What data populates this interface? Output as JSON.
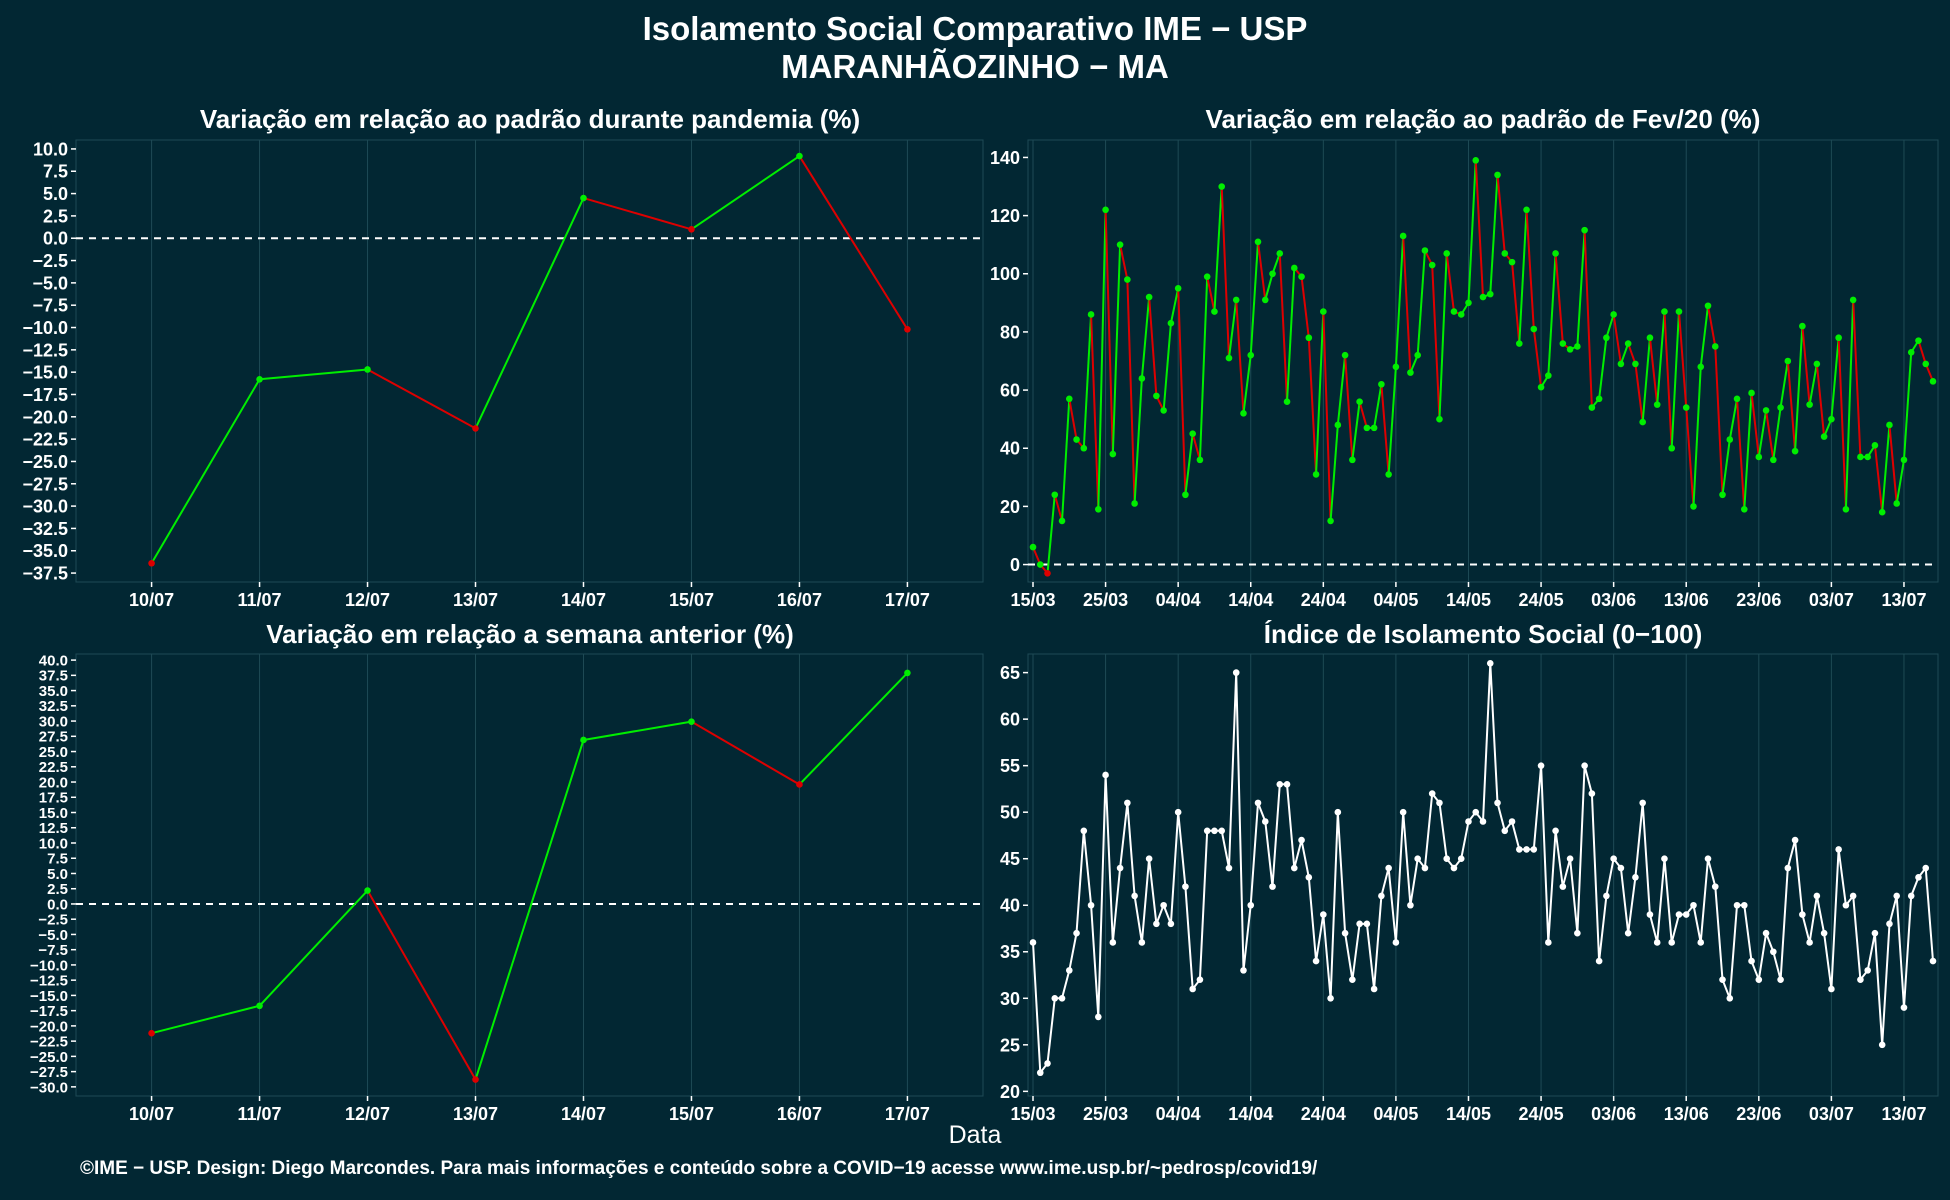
{
  "title_line1": "Isolamento Social Comparativo IME − USP",
  "title_line2": "MARANHÃOZINHO − MA",
  "xlabel": "Data",
  "caption": "©IME − USP. Design: Diego Marcondes. Para mais informações e conteúdo sobre a COVID−19 acesse www.ime.usp.br/~pedrosp/covid19/",
  "colors": {
    "background": "#022733",
    "grid": "#1e4a55",
    "positive": "#00ee00",
    "negative": "#dd0000",
    "index_series": "#ffffff"
  },
  "chart_data": [
    {
      "id": "pandemia",
      "type": "line",
      "title": "Variação em relação ao padrão durante pandemia (%)",
      "categories": [
        "10/07",
        "11/07",
        "12/07",
        "13/07",
        "14/07",
        "15/07",
        "16/07",
        "17/07"
      ],
      "values": [
        -36.4,
        -15.8,
        -14.7,
        -21.3,
        4.5,
        1.0,
        9.2,
        -10.2
      ],
      "segment_coloring": "green if increasing, red if decreasing",
      "reference_line": 0,
      "ylim": [
        -38.5,
        11.0
      ],
      "yticks": [
        "10.0",
        "7.5",
        "5.0",
        "2.5",
        "0.0",
        "−2.5",
        "−5.0",
        "−7.5",
        "−10.0",
        "−12.5",
        "−15.0",
        "−17.5",
        "−20.0",
        "−22.5",
        "−25.0",
        "−27.5",
        "−30.0",
        "−32.5",
        "−35.0",
        "−37.5"
      ]
    },
    {
      "id": "fev20",
      "type": "line",
      "title": "Variação em relação ao padrão de Fev/20 (%)",
      "x_start": "15/03",
      "x_end": "17/07",
      "x_tick_labels": [
        "15/03",
        "25/03",
        "04/04",
        "14/04",
        "24/04",
        "04/05",
        "14/05",
        "24/05",
        "03/06",
        "13/06",
        "23/06",
        "03/07",
        "13/07"
      ],
      "values": [
        6,
        0,
        -3,
        24,
        15,
        57,
        43,
        40,
        86,
        19,
        122,
        38,
        110,
        98,
        21,
        64,
        92,
        58,
        53,
        83,
        95,
        24,
        45,
        36,
        99,
        87,
        130,
        71,
        91,
        52,
        72,
        111,
        91,
        100,
        107,
        56,
        102,
        99,
        78,
        31,
        87,
        15,
        48,
        72,
        36,
        56,
        47,
        47,
        62,
        31,
        68,
        113,
        66,
        72,
        108,
        103,
        50,
        107,
        87,
        86,
        90,
        139,
        92,
        93,
        134,
        107,
        104,
        76,
        122,
        81,
        61,
        65,
        107,
        76,
        74,
        75,
        115,
        54,
        57,
        78,
        86,
        69,
        76,
        69,
        49,
        78,
        55,
        87,
        40,
        87,
        54,
        20,
        68,
        89,
        75,
        24,
        43,
        57,
        19,
        59,
        37,
        53,
        36,
        54,
        70,
        39,
        82,
        55,
        69,
        44,
        50,
        78,
        19,
        91,
        37,
        37,
        41,
        18,
        48,
        21,
        36,
        73,
        77,
        69,
        63
      ],
      "reference_line": 0,
      "ylim": [
        -6,
        146
      ],
      "yticks": [
        "0",
        "20",
        "40",
        "60",
        "80",
        "100",
        "120",
        "140"
      ]
    },
    {
      "id": "semana",
      "type": "line",
      "title": "Variação em relação a semana anterior (%)",
      "categories": [
        "10/07",
        "11/07",
        "12/07",
        "13/07",
        "14/07",
        "15/07",
        "16/07",
        "17/07"
      ],
      "values": [
        -21.2,
        -16.7,
        2.2,
        -28.8,
        26.9,
        29.9,
        19.6,
        37.9
      ],
      "segment_coloring": "green if increasing, red if decreasing",
      "reference_line": 0,
      "ylim": [
        -31.5,
        41.0
      ],
      "yticks": [
        "40.0",
        "37.5",
        "35.0",
        "32.5",
        "30.0",
        "27.5",
        "25.0",
        "22.5",
        "20.0",
        "17.5",
        "15.0",
        "12.5",
        "10.0",
        "7.5",
        "5.0",
        "2.5",
        "0.0",
        "−2.5",
        "−5.0",
        "−7.5",
        "−10.0",
        "−12.5",
        "−15.0",
        "−17.5",
        "−20.0",
        "−22.5",
        "−25.0",
        "−27.5",
        "−30.0"
      ]
    },
    {
      "id": "indice",
      "type": "line",
      "title": "Índice de Isolamento Social (0−100)",
      "x_start": "15/03",
      "x_end": "17/07",
      "x_tick_labels": [
        "15/03",
        "25/03",
        "04/04",
        "14/04",
        "24/04",
        "04/05",
        "14/05",
        "24/05",
        "03/06",
        "13/06",
        "23/06",
        "03/07",
        "13/07"
      ],
      "values": [
        36,
        22,
        23,
        30,
        30,
        33,
        37,
        48,
        40,
        28,
        54,
        36,
        44,
        51,
        41,
        36,
        45,
        38,
        40,
        38,
        50,
        42,
        31,
        32,
        48,
        48,
        48,
        44,
        65,
        33,
        40,
        51,
        49,
        42,
        53,
        53,
        44,
        47,
        43,
        34,
        39,
        30,
        50,
        37,
        32,
        38,
        38,
        31,
        41,
        44,
        36,
        50,
        40,
        45,
        44,
        52,
        51,
        45,
        44,
        45,
        49,
        50,
        49,
        66,
        51,
        48,
        49,
        46,
        46,
        46,
        55,
        36,
        48,
        42,
        45,
        37,
        55,
        52,
        34,
        41,
        45,
        44,
        37,
        43,
        51,
        39,
        36,
        45,
        36,
        39,
        39,
        40,
        36,
        45,
        42,
        32,
        30,
        40,
        40,
        34,
        32,
        37,
        35,
        32,
        44,
        47,
        39,
        36,
        41,
        37,
        31,
        46,
        40,
        41,
        32,
        33,
        37,
        25,
        38,
        41,
        29,
        41,
        43,
        44,
        34
      ],
      "ylim": [
        19.5,
        67
      ],
      "yticks": [
        "20",
        "25",
        "30",
        "35",
        "40",
        "45",
        "50",
        "55",
        "60",
        "65"
      ]
    }
  ]
}
